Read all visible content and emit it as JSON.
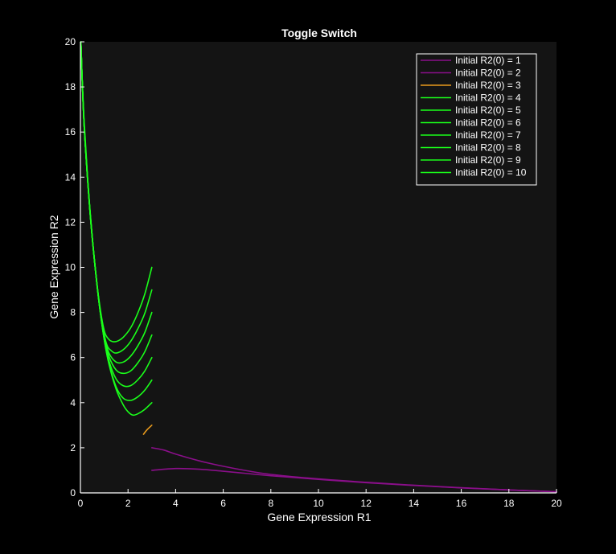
{
  "chart_data": {
    "type": "line",
    "title": "Toggle Switch",
    "xlabel": "Gene Expression R1",
    "ylabel": "Gene Expression R2",
    "xlim": [
      0,
      20
    ],
    "ylim": [
      0,
      20
    ],
    "xticks": [
      0,
      2,
      4,
      6,
      8,
      10,
      12,
      14,
      16,
      18,
      20
    ],
    "yticks": [
      0,
      2,
      4,
      6,
      8,
      10,
      12,
      14,
      16,
      18,
      20
    ],
    "grid": false,
    "legend_position": "top-right",
    "colors": {
      "figure_background": "#000000",
      "axes_background": "#141414",
      "axis": "#ffffff",
      "purple": "#8a0f8a",
      "orange": "#e89a1c",
      "green": "#1aff1a"
    },
    "series": [
      {
        "name": "Initial R2(0) = 1",
        "color": "#8a0f8a",
        "x": [
          3,
          4,
          5,
          6,
          7,
          8,
          10,
          12,
          14,
          16,
          18,
          20
        ],
        "y": [
          1.0,
          1.08,
          1.05,
          0.96,
          0.86,
          0.76,
          0.6,
          0.45,
          0.33,
          0.22,
          0.13,
          0.05
        ]
      },
      {
        "name": "Initial R2(0) = 2",
        "color": "#8a0f8a",
        "x": [
          3,
          3.5,
          4,
          5,
          6,
          7,
          8,
          10,
          12,
          14,
          16,
          18,
          20
        ],
        "y": [
          2.0,
          1.9,
          1.72,
          1.42,
          1.18,
          0.98,
          0.82,
          0.62,
          0.47,
          0.34,
          0.23,
          0.13,
          0.05
        ]
      },
      {
        "name": "Initial R2(0) = 3",
        "color": "#e89a1c",
        "x": [
          3,
          2.8,
          2.65
        ],
        "y": [
          3.0,
          2.8,
          2.6
        ]
      },
      {
        "name": "Initial R2(0) = 4",
        "color": "#1aff1a",
        "x": [
          3,
          2.7,
          2.4,
          2.2,
          2.0,
          1.8,
          1.5,
          1.2,
          1.0,
          0.8,
          0.6,
          0.4,
          0.2,
          0.1,
          0.02
        ],
        "y": [
          4.0,
          3.7,
          3.5,
          3.45,
          3.6,
          3.9,
          4.6,
          5.7,
          6.8,
          8.3,
          10.2,
          12.5,
          15.5,
          17.6,
          20.0
        ]
      },
      {
        "name": "Initial R2(0) = 5",
        "color": "#1aff1a",
        "x": [
          3,
          2.7,
          2.4,
          2.1,
          1.8,
          1.5,
          1.2,
          1.0,
          0.8,
          0.6,
          0.4,
          0.2,
          0.1,
          0.02
        ],
        "y": [
          5.0,
          4.55,
          4.25,
          4.1,
          4.2,
          4.7,
          5.75,
          6.8,
          8.3,
          10.2,
          12.5,
          15.5,
          17.6,
          20.0
        ]
      },
      {
        "name": "Initial R2(0) = 6",
        "color": "#1aff1a",
        "x": [
          3,
          2.7,
          2.4,
          2.1,
          1.8,
          1.5,
          1.2,
          1.0,
          0.8,
          0.6,
          0.4,
          0.2,
          0.1,
          0.02
        ],
        "y": [
          6.0,
          5.4,
          5.0,
          4.75,
          4.75,
          5.05,
          5.85,
          6.85,
          8.3,
          10.2,
          12.5,
          15.5,
          17.6,
          20.0
        ]
      },
      {
        "name": "Initial R2(0) = 7",
        "color": "#1aff1a",
        "x": [
          3,
          2.7,
          2.4,
          2.1,
          1.8,
          1.5,
          1.2,
          1.0,
          0.8,
          0.6,
          0.4,
          0.2,
          0.1,
          0.02
        ],
        "y": [
          7.0,
          6.25,
          5.75,
          5.4,
          5.3,
          5.45,
          6.05,
          6.9,
          8.3,
          10.2,
          12.5,
          15.5,
          17.6,
          20.0
        ]
      },
      {
        "name": "Initial R2(0) = 8",
        "color": "#1aff1a",
        "x": [
          3,
          2.7,
          2.4,
          2.1,
          1.8,
          1.5,
          1.2,
          1.0,
          0.8,
          0.6,
          0.4,
          0.2,
          0.1,
          0.02
        ],
        "y": [
          8.0,
          7.1,
          6.5,
          6.05,
          5.8,
          5.8,
          6.2,
          6.95,
          8.3,
          10.2,
          12.5,
          15.5,
          17.6,
          20.0
        ]
      },
      {
        "name": "Initial R2(0) = 9",
        "color": "#1aff1a",
        "x": [
          3,
          2.7,
          2.4,
          2.1,
          1.8,
          1.5,
          1.3,
          1.1,
          0.9,
          0.7,
          0.5,
          0.3,
          0.15,
          0.05,
          0.02
        ],
        "y": [
          9.0,
          7.95,
          7.25,
          6.7,
          6.35,
          6.2,
          6.3,
          6.6,
          7.6,
          9.2,
          11.3,
          14.0,
          16.6,
          19.0,
          20.0
        ]
      },
      {
        "name": "Initial R2(0) = 10",
        "color": "#1aff1a",
        "x": [
          3,
          2.7,
          2.4,
          2.1,
          1.8,
          1.6,
          1.4,
          1.2,
          1.0,
          0.8,
          0.6,
          0.4,
          0.2,
          0.1,
          0.02
        ],
        "y": [
          10.0,
          8.8,
          7.95,
          7.3,
          6.9,
          6.75,
          6.7,
          6.8,
          7.2,
          8.4,
          10.2,
          12.5,
          15.5,
          17.6,
          20.0
        ]
      }
    ]
  }
}
